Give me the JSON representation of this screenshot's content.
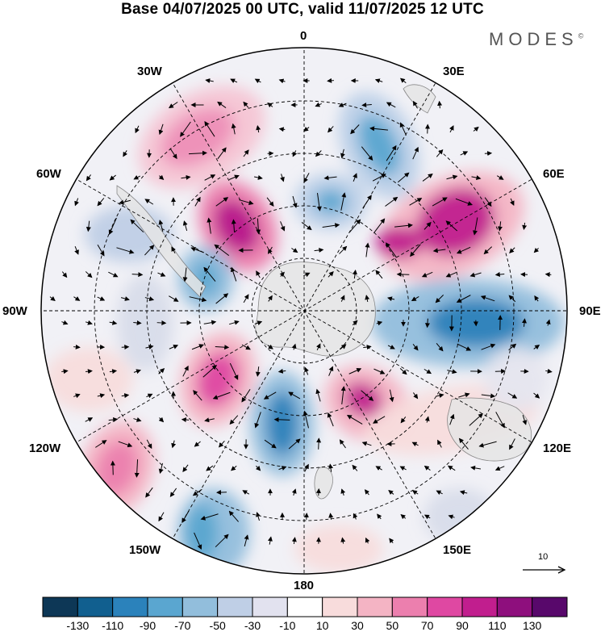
{
  "title": "Base 04/07/2025 00 UTC, valid 11/07/2025 12 UTC",
  "logo": "MODES",
  "logo_mark": "©",
  "labels": {
    "top": "0",
    "top_left": "30W",
    "top_right": "30E",
    "upper_left": "60W",
    "upper_right": "60E",
    "left": "90W",
    "right": "90E",
    "lower_left": "120W",
    "lower_right": "120E",
    "bottom_left": "150W",
    "bottom_right": "150E",
    "bottom": "180"
  },
  "reference_vector": "10",
  "colorbar": {
    "ticks": [
      "-130",
      "-110",
      "-90",
      "-70",
      "-50",
      "-30",
      "-10",
      "10",
      "30",
      "50",
      "70",
      "90",
      "110",
      "130"
    ],
    "colors": [
      "#0d3756",
      "#115f8f",
      "#2b82bb",
      "#5aa6d0",
      "#92bedc",
      "#bfcfe6",
      "#e2e2ef",
      "#ffffff",
      "#f8dcdc",
      "#f4b4c4",
      "#ec7fae",
      "#df48a2",
      "#c11e8e",
      "#8e0f7d",
      "#58086b"
    ]
  },
  "colors": {
    "land": "#e4e4e4",
    "grid": "#000000",
    "background": "#f4f4f8"
  }
}
